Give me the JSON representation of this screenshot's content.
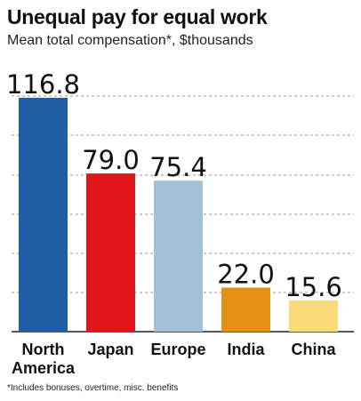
{
  "chart_data": {
    "type": "bar",
    "title": "Unequal pay for equal work",
    "subtitle": "Mean total compensation*,  $thousands",
    "footnote": "*Includes bonuses, overtime, misc. benefits",
    "categories": [
      [
        "North",
        "America"
      ],
      [
        "Japan"
      ],
      [
        "Europe"
      ],
      [
        "India"
      ],
      [
        "China"
      ]
    ],
    "values": [
      116.8,
      79.0,
      75.4,
      22.0,
      15.6
    ],
    "value_labels": [
      "116.8",
      "79.0",
      "75.4",
      "22.0",
      "15.6"
    ],
    "colors": [
      "#1f5fa6",
      "#e3161c",
      "#a5bfd9",
      "#e48f16",
      "#fad97b"
    ],
    "ylim": [
      0,
      116.8
    ],
    "grid": true,
    "legend": "none"
  }
}
